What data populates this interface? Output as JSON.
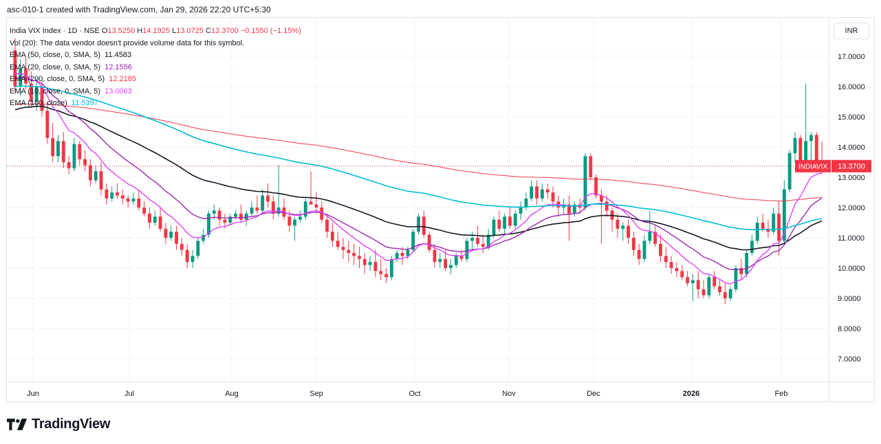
{
  "header": {
    "snapshot_text": "asc-010-1 created with TradingView.com, Jan 29, 2026 22:20 UTC+5:30"
  },
  "legend": {
    "symbol_line": "India VIX Index · 1D · NSE",
    "open_label": "O",
    "open": "13.5250",
    "high_label": "H",
    "high": "14.1925",
    "low_label": "L",
    "low": "13.0725",
    "close_label": "C",
    "close": "13.3700",
    "change": "−0.1550 (−1.15%)",
    "volume_note": "Vol (20): The data vendor doesn't provide volume data for this symbol.",
    "indicators": [
      {
        "label": "EMA (50, close, 0, SMA, 5)",
        "value": "11.4583",
        "color": "#131722"
      },
      {
        "label": "EMA (20, close, 0, SMA, 5)",
        "value": "12.1556",
        "color": "#9c27b0"
      },
      {
        "label": "EMA (200, close, 0, SMA, 5)",
        "value": "12.2185",
        "color": "#f23645"
      },
      {
        "label": "EMA (10, close, 0, SMA, 5)",
        "value": "13.0063",
        "color": "#e040fb"
      },
      {
        "label": "EMA (100, close)",
        "value": "11.5397",
        "color": "#00bcd4"
      }
    ]
  },
  "currency": "INR",
  "price_badge": {
    "symbol": "INDIAVIX",
    "value": "13.3700",
    "color": "#f23645"
  },
  "brand": {
    "name": "TradingView"
  },
  "chart_data": {
    "type": "candlestick",
    "title": "India VIX Index · 1D · NSE",
    "y_axis_ticks": [
      "17.0000",
      "16.0000",
      "15.0000",
      "14.0000",
      "13.0000",
      "12.0000",
      "11.0000",
      "10.0000",
      "9.0000",
      "8.0000",
      "7.0000"
    ],
    "ylim": [
      6.4,
      17.9
    ],
    "x_axis_labels": [
      "Jun",
      "Jul",
      "Aug",
      "Sep",
      "Oct",
      "Nov",
      "Dec",
      "2026",
      "Feb"
    ],
    "last_price": 13.37,
    "up_color": "#089981",
    "down_color": "#f23645",
    "candles": [
      [
        17.2,
        17.6,
        15.8,
        16.0
      ],
      [
        16.0,
        16.9,
        15.7,
        16.6
      ],
      [
        16.6,
        17.0,
        15.9,
        16.1
      ],
      [
        16.1,
        16.5,
        15.3,
        15.5
      ],
      [
        15.5,
        16.3,
        15.2,
        16.0
      ],
      [
        16.0,
        16.2,
        15.0,
        15.2
      ],
      [
        15.2,
        15.5,
        14.1,
        14.3
      ],
      [
        14.3,
        14.8,
        13.5,
        13.7
      ],
      [
        13.7,
        14.4,
        13.5,
        14.2
      ],
      [
        14.2,
        14.5,
        13.3,
        13.5
      ],
      [
        13.5,
        13.7,
        13.1,
        13.3
      ],
      [
        13.3,
        14.3,
        13.2,
        14.1
      ],
      [
        14.1,
        14.2,
        13.4,
        13.6
      ],
      [
        13.6,
        13.9,
        13.2,
        13.4
      ],
      [
        13.4,
        13.6,
        12.7,
        12.9
      ],
      [
        12.9,
        13.4,
        12.8,
        13.2
      ],
      [
        13.2,
        13.5,
        12.4,
        12.6
      ],
      [
        12.6,
        12.8,
        12.1,
        12.3
      ],
      [
        12.3,
        12.7,
        12.2,
        12.5
      ],
      [
        12.5,
        12.8,
        12.3,
        12.4
      ],
      [
        12.4,
        12.6,
        12.1,
        12.3
      ],
      [
        12.3,
        12.4,
        12.0,
        12.2
      ],
      [
        12.2,
        12.5,
        12.1,
        12.3
      ],
      [
        12.3,
        12.6,
        11.9,
        12.0
      ],
      [
        12.0,
        12.2,
        11.7,
        11.8
      ],
      [
        11.8,
        12.0,
        11.3,
        11.5
      ],
      [
        11.5,
        11.9,
        11.4,
        11.7
      ],
      [
        11.7,
        12.0,
        11.2,
        11.3
      ],
      [
        11.3,
        11.5,
        10.8,
        11.0
      ],
      [
        11.0,
        11.4,
        10.9,
        11.2
      ],
      [
        11.2,
        11.4,
        10.6,
        10.8
      ],
      [
        10.8,
        11.0,
        10.4,
        10.6
      ],
      [
        10.6,
        10.8,
        10.0,
        10.2
      ],
      [
        10.2,
        10.6,
        10.0,
        10.4
      ],
      [
        10.4,
        11.0,
        10.3,
        10.9
      ],
      [
        10.9,
        11.3,
        10.8,
        11.1
      ],
      [
        11.1,
        11.9,
        11.0,
        11.8
      ],
      [
        11.8,
        12.1,
        11.6,
        11.9
      ],
      [
        11.9,
        12.0,
        11.4,
        11.6
      ],
      [
        11.6,
        11.8,
        11.3,
        11.5
      ],
      [
        11.5,
        11.8,
        11.4,
        11.7
      ],
      [
        11.7,
        11.9,
        11.6,
        11.8
      ],
      [
        11.8,
        12.1,
        11.5,
        11.6
      ],
      [
        11.6,
        11.9,
        11.4,
        11.8
      ],
      [
        11.8,
        12.2,
        11.7,
        12.0
      ],
      [
        12.0,
        12.4,
        11.8,
        11.9
      ],
      [
        11.9,
        12.6,
        11.8,
        12.4
      ],
      [
        12.4,
        12.8,
        12.0,
        12.2
      ],
      [
        12.2,
        12.4,
        11.6,
        11.8
      ],
      [
        11.8,
        13.4,
        11.7,
        12.0
      ],
      [
        12.0,
        12.3,
        11.6,
        11.7
      ],
      [
        11.7,
        11.9,
        11.2,
        11.4
      ],
      [
        11.4,
        11.7,
        10.9,
        11.6
      ],
      [
        11.6,
        11.9,
        11.5,
        11.7
      ],
      [
        11.7,
        12.3,
        11.6,
        12.2
      ],
      [
        12.2,
        13.2,
        12.1,
        12.1
      ],
      [
        12.1,
        12.5,
        11.8,
        12.0
      ],
      [
        12.0,
        12.2,
        11.5,
        11.6
      ],
      [
        11.6,
        11.8,
        11.0,
        11.2
      ],
      [
        11.2,
        11.5,
        10.7,
        10.9
      ],
      [
        10.9,
        11.2,
        10.6,
        10.7
      ],
      [
        10.7,
        11.0,
        10.3,
        10.6
      ],
      [
        10.6,
        10.9,
        10.2,
        10.5
      ],
      [
        10.5,
        10.8,
        10.1,
        10.4
      ],
      [
        10.4,
        10.7,
        10.0,
        10.3
      ],
      [
        10.3,
        10.5,
        9.8,
        10.1
      ],
      [
        10.1,
        10.4,
        9.9,
        10.2
      ],
      [
        10.2,
        10.6,
        9.7,
        9.9
      ],
      [
        9.9,
        10.3,
        9.6,
        9.8
      ],
      [
        9.8,
        10.0,
        9.5,
        9.7
      ],
      [
        9.7,
        10.4,
        9.6,
        10.3
      ],
      [
        10.3,
        10.6,
        10.2,
        10.5
      ],
      [
        10.5,
        10.7,
        10.1,
        10.4
      ],
      [
        10.4,
        10.7,
        10.3,
        10.6
      ],
      [
        10.6,
        11.3,
        10.5,
        11.2
      ],
      [
        11.2,
        11.8,
        11.1,
        11.7
      ],
      [
        11.7,
        11.9,
        11.0,
        11.1
      ],
      [
        11.1,
        11.2,
        10.5,
        10.6
      ],
      [
        10.6,
        10.8,
        10.0,
        10.2
      ],
      [
        10.2,
        10.5,
        10.0,
        10.3
      ],
      [
        10.3,
        10.6,
        9.9,
        10.0
      ],
      [
        10.0,
        10.3,
        9.8,
        10.1
      ],
      [
        10.1,
        10.5,
        10.0,
        10.4
      ],
      [
        10.4,
        10.6,
        10.2,
        10.3
      ],
      [
        10.3,
        11.0,
        10.2,
        10.9
      ],
      [
        10.9,
        11.2,
        10.6,
        11.0
      ],
      [
        11.0,
        11.4,
        10.7,
        10.8
      ],
      [
        10.8,
        11.1,
        10.5,
        10.7
      ],
      [
        10.7,
        11.3,
        10.6,
        11.1
      ],
      [
        11.1,
        11.7,
        11.0,
        11.6
      ],
      [
        11.6,
        11.9,
        11.2,
        11.3
      ],
      [
        11.3,
        11.8,
        11.1,
        11.7
      ],
      [
        11.7,
        12.0,
        11.3,
        11.4
      ],
      [
        11.4,
        11.9,
        11.3,
        11.8
      ],
      [
        11.8,
        12.2,
        11.6,
        12.0
      ],
      [
        12.0,
        12.5,
        11.9,
        12.3
      ],
      [
        12.3,
        12.9,
        12.2,
        12.7
      ],
      [
        12.7,
        12.9,
        12.1,
        12.3
      ],
      [
        12.3,
        12.8,
        12.2,
        12.6
      ],
      [
        12.6,
        12.8,
        12.3,
        12.5
      ],
      [
        12.5,
        12.7,
        12.0,
        12.2
      ],
      [
        12.2,
        12.4,
        11.7,
        12.0
      ],
      [
        12.0,
        12.3,
        11.8,
        12.1
      ],
      [
        12.1,
        12.4,
        10.9,
        11.8
      ],
      [
        11.8,
        12.2,
        11.7,
        12.1
      ],
      [
        12.1,
        12.3,
        11.8,
        12.0
      ],
      [
        12.0,
        13.8,
        11.9,
        13.7
      ],
      [
        13.7,
        13.8,
        12.9,
        13.0
      ],
      [
        13.0,
        13.1,
        12.3,
        12.4
      ],
      [
        12.4,
        12.6,
        10.8,
        12.2
      ],
      [
        12.2,
        12.4,
        11.7,
        11.9
      ],
      [
        11.9,
        12.0,
        11.2,
        11.6
      ],
      [
        11.6,
        11.8,
        11.0,
        11.3
      ],
      [
        11.3,
        11.5,
        10.9,
        11.4
      ],
      [
        11.4,
        11.6,
        10.8,
        11.0
      ],
      [
        11.0,
        11.2,
        10.4,
        10.6
      ],
      [
        10.6,
        10.8,
        10.1,
        10.3
      ],
      [
        10.3,
        11.1,
        10.2,
        10.9
      ],
      [
        10.9,
        11.9,
        10.8,
        11.2
      ],
      [
        11.2,
        11.4,
        10.7,
        10.8
      ],
      [
        10.8,
        11.1,
        10.2,
        10.4
      ],
      [
        10.4,
        10.7,
        10.0,
        10.2
      ],
      [
        10.2,
        10.4,
        9.8,
        10.0
      ],
      [
        10.0,
        10.2,
        9.7,
        9.9
      ],
      [
        9.9,
        10.1,
        9.6,
        9.7
      ],
      [
        9.7,
        9.9,
        9.4,
        9.5
      ],
      [
        9.5,
        9.8,
        8.9,
        9.6
      ],
      [
        9.6,
        9.9,
        9.0,
        9.3
      ],
      [
        9.3,
        9.6,
        9.0,
        9.1
      ],
      [
        9.1,
        9.8,
        9.0,
        9.7
      ],
      [
        9.7,
        9.9,
        9.3,
        9.4
      ],
      [
        9.4,
        9.6,
        9.1,
        9.2
      ],
      [
        9.2,
        9.5,
        8.8,
        9.0
      ],
      [
        9.0,
        9.4,
        8.9,
        9.3
      ],
      [
        9.3,
        10.1,
        9.2,
        10.0
      ],
      [
        10.0,
        10.3,
        9.6,
        9.8
      ],
      [
        9.8,
        10.6,
        9.7,
        10.5
      ],
      [
        10.5,
        11.1,
        10.4,
        10.9
      ],
      [
        10.9,
        11.7,
        10.8,
        11.5
      ],
      [
        11.5,
        11.8,
        11.2,
        11.3
      ],
      [
        11.3,
        11.6,
        11.0,
        11.2
      ],
      [
        11.2,
        12.0,
        11.1,
        11.8
      ],
      [
        11.8,
        12.2,
        10.4,
        10.9
      ],
      [
        10.9,
        12.9,
        10.8,
        12.6
      ],
      [
        12.6,
        13.9,
        12.5,
        13.8
      ],
      [
        13.8,
        14.5,
        13.5,
        14.3
      ],
      [
        14.3,
        14.4,
        13.2,
        13.5
      ],
      [
        13.5,
        16.1,
        13.4,
        14.2
      ],
      [
        14.2,
        14.5,
        13.4,
        14.4
      ],
      [
        14.4,
        14.5,
        13.3,
        13.5
      ],
      [
        13.5,
        14.2,
        13.1,
        13.37
      ]
    ]
  }
}
